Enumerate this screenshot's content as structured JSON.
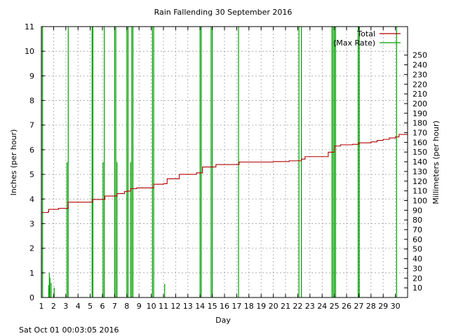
{
  "chart_data": {
    "type": "line",
    "title": "Rain Fallending 30 September 2016",
    "xlabel": "Day",
    "ylabel": "Inches (per hour)",
    "y2label": "Millimeters (per hour)",
    "xlim": [
      1,
      31
    ],
    "ylim": [
      0,
      11
    ],
    "y2lim": [
      0,
      279.4
    ],
    "grid": true,
    "legend_position": "top-right",
    "x_ticks": [
      1,
      2,
      3,
      4,
      5,
      6,
      7,
      8,
      9,
      10,
      11,
      12,
      13,
      14,
      15,
      16,
      17,
      18,
      19,
      20,
      21,
      22,
      23,
      24,
      25,
      26,
      27,
      28,
      29,
      30
    ],
    "y_ticks": [
      0,
      1,
      2,
      3,
      4,
      5,
      6,
      7,
      8,
      9,
      10,
      11
    ],
    "y2_ticks": [
      10,
      20,
      30,
      40,
      50,
      60,
      70,
      80,
      90,
      100,
      110,
      120,
      130,
      140,
      150,
      160,
      170,
      180,
      190,
      200,
      210,
      220,
      230,
      240,
      250
    ],
    "series": [
      {
        "name": "Total",
        "color": "#b00000",
        "x": [
          1.0,
          1.55,
          1.6,
          2.3,
          2.4,
          3.1,
          3.2,
          5.1,
          5.2,
          6.1,
          6.2,
          7.0,
          7.2,
          7.6,
          7.8,
          8.0,
          8.3,
          8.5,
          8.8,
          9.8,
          10.2,
          10.4,
          11.0,
          11.3,
          12.0,
          12.3,
          13.2,
          13.7,
          14.0,
          14.2,
          15.0,
          15.3,
          16.3,
          17.0,
          17.2,
          19.0,
          20.0,
          21.0,
          21.3,
          22.0,
          22.3,
          22.6,
          24.2,
          24.5,
          24.8,
          25.0,
          25.5,
          26.5,
          27.0,
          28.0,
          28.5,
          29.0,
          29.5,
          30.0,
          30.3,
          31.0
        ],
        "values": [
          3.45,
          3.48,
          3.58,
          3.58,
          3.62,
          3.62,
          3.87,
          3.87,
          3.98,
          3.98,
          4.12,
          4.12,
          4.22,
          4.22,
          4.3,
          4.32,
          4.42,
          4.42,
          4.45,
          4.45,
          4.6,
          4.6,
          4.62,
          4.82,
          4.82,
          5.0,
          5.0,
          5.06,
          5.06,
          5.3,
          5.3,
          5.4,
          5.4,
          5.4,
          5.5,
          5.5,
          5.52,
          5.52,
          5.55,
          5.55,
          5.62,
          5.72,
          5.72,
          5.9,
          5.9,
          6.15,
          6.2,
          6.22,
          6.28,
          6.32,
          6.38,
          6.42,
          6.48,
          6.52,
          6.62,
          6.62
        ]
      },
      {
        "name": "(Max Rate)",
        "color": "#00a000",
        "spikes": [
          {
            "x": 1.0,
            "value": 11
          },
          {
            "x": 1.1,
            "value": 11
          },
          {
            "x": 1.6,
            "value": 0.5
          },
          {
            "x": 1.65,
            "value": 1.0
          },
          {
            "x": 1.7,
            "value": 0.8
          },
          {
            "x": 1.8,
            "value": 0.6
          },
          {
            "x": 2.05,
            "value": 0.4
          },
          {
            "x": 3.1,
            "value": 5.5
          },
          {
            "x": 3.2,
            "value": 11
          },
          {
            "x": 5.15,
            "value": 11
          },
          {
            "x": 5.22,
            "value": 11
          },
          {
            "x": 6.05,
            "value": 5.5
          },
          {
            "x": 6.15,
            "value": 11
          },
          {
            "x": 7.0,
            "value": 11
          },
          {
            "x": 7.1,
            "value": 11
          },
          {
            "x": 7.2,
            "value": 5.5
          },
          {
            "x": 8.0,
            "value": 11
          },
          {
            "x": 8.1,
            "value": 11
          },
          {
            "x": 8.3,
            "value": 5.5
          },
          {
            "x": 8.4,
            "value": 11
          },
          {
            "x": 8.5,
            "value": 11
          },
          {
            "x": 10.1,
            "value": 11
          },
          {
            "x": 10.2,
            "value": 11
          },
          {
            "x": 11.1,
            "value": 0.55
          },
          {
            "x": 14.0,
            "value": 11
          },
          {
            "x": 14.1,
            "value": 11
          },
          {
            "x": 14.9,
            "value": 11
          },
          {
            "x": 15.0,
            "value": 11
          },
          {
            "x": 17.15,
            "value": 11
          },
          {
            "x": 22.1,
            "value": 11
          },
          {
            "x": 22.3,
            "value": 11
          },
          {
            "x": 24.8,
            "value": 11
          },
          {
            "x": 24.9,
            "value": 11
          },
          {
            "x": 25.0,
            "value": 11
          },
          {
            "x": 25.1,
            "value": 11
          },
          {
            "x": 26.95,
            "value": 11
          },
          {
            "x": 27.05,
            "value": 11
          },
          {
            "x": 30.1,
            "value": 11
          }
        ]
      }
    ],
    "footer": "Sat Oct 01 00:03:05 2016"
  }
}
